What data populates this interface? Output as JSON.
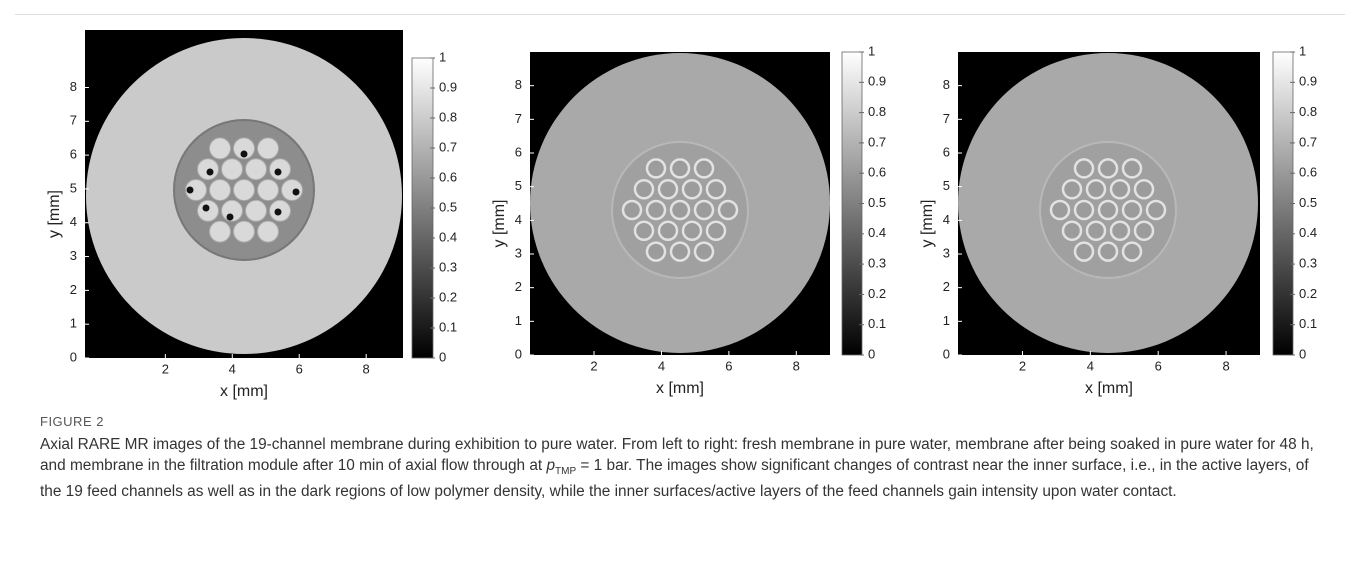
{
  "panels": [
    {
      "xlabel": "x [mm]",
      "ylabel": "y [mm]",
      "xticks": [
        2,
        4,
        6,
        8
      ],
      "yticks": [
        0,
        1,
        2,
        3,
        4,
        5,
        6,
        7,
        8
      ],
      "xlim": [
        -0.4,
        9.1
      ],
      "ylim": [
        0,
        9.7
      ],
      "colorbar_ticks": [
        0,
        0.1,
        0.2,
        0.3,
        0.4,
        0.5,
        0.6,
        0.7,
        0.8,
        0.9,
        1
      ]
    },
    {
      "xlabel": "x [mm]",
      "ylabel": "y [mm]",
      "xticks": [
        2,
        4,
        6,
        8
      ],
      "yticks": [
        0,
        1,
        2,
        3,
        4,
        5,
        6,
        7,
        8
      ],
      "xlim": [
        0.1,
        9
      ],
      "ylim": [
        0,
        9
      ],
      "colorbar_ticks": [
        0,
        0.1,
        0.2,
        0.3,
        0.4,
        0.5,
        0.6,
        0.7,
        0.8,
        0.9,
        1
      ]
    },
    {
      "xlabel": "x [mm]",
      "ylabel": "y [mm]",
      "xticks": [
        2,
        4,
        6,
        8
      ],
      "yticks": [
        0,
        1,
        2,
        3,
        4,
        5,
        6,
        7,
        8
      ],
      "xlim": [
        0.1,
        9
      ],
      "ylim": [
        0,
        9
      ],
      "colorbar_ticks": [
        0,
        0.1,
        0.2,
        0.3,
        0.4,
        0.5,
        0.6,
        0.7,
        0.8,
        0.9,
        1
      ]
    }
  ],
  "caption": {
    "label": "FIGURE 2",
    "text_before": "Axial RARE MR images of the 19-channel membrane during exhibition to pure water. From left to right: fresh membrane in pure water, membrane after being soaked in pure water for 48 h, and membrane in the filtration module after 10 min of axial flow through at ",
    "variable": "p",
    "subscript": "TMP",
    "text_after": " = 1 bar. The images show significant changes of contrast near the inner surface, i.e., in the active layers, of the 19 feed channels as well as in the dark regions of low polymer density, while the inner surfaces/active layers of the feed channels gain intensity upon water contact."
  }
}
